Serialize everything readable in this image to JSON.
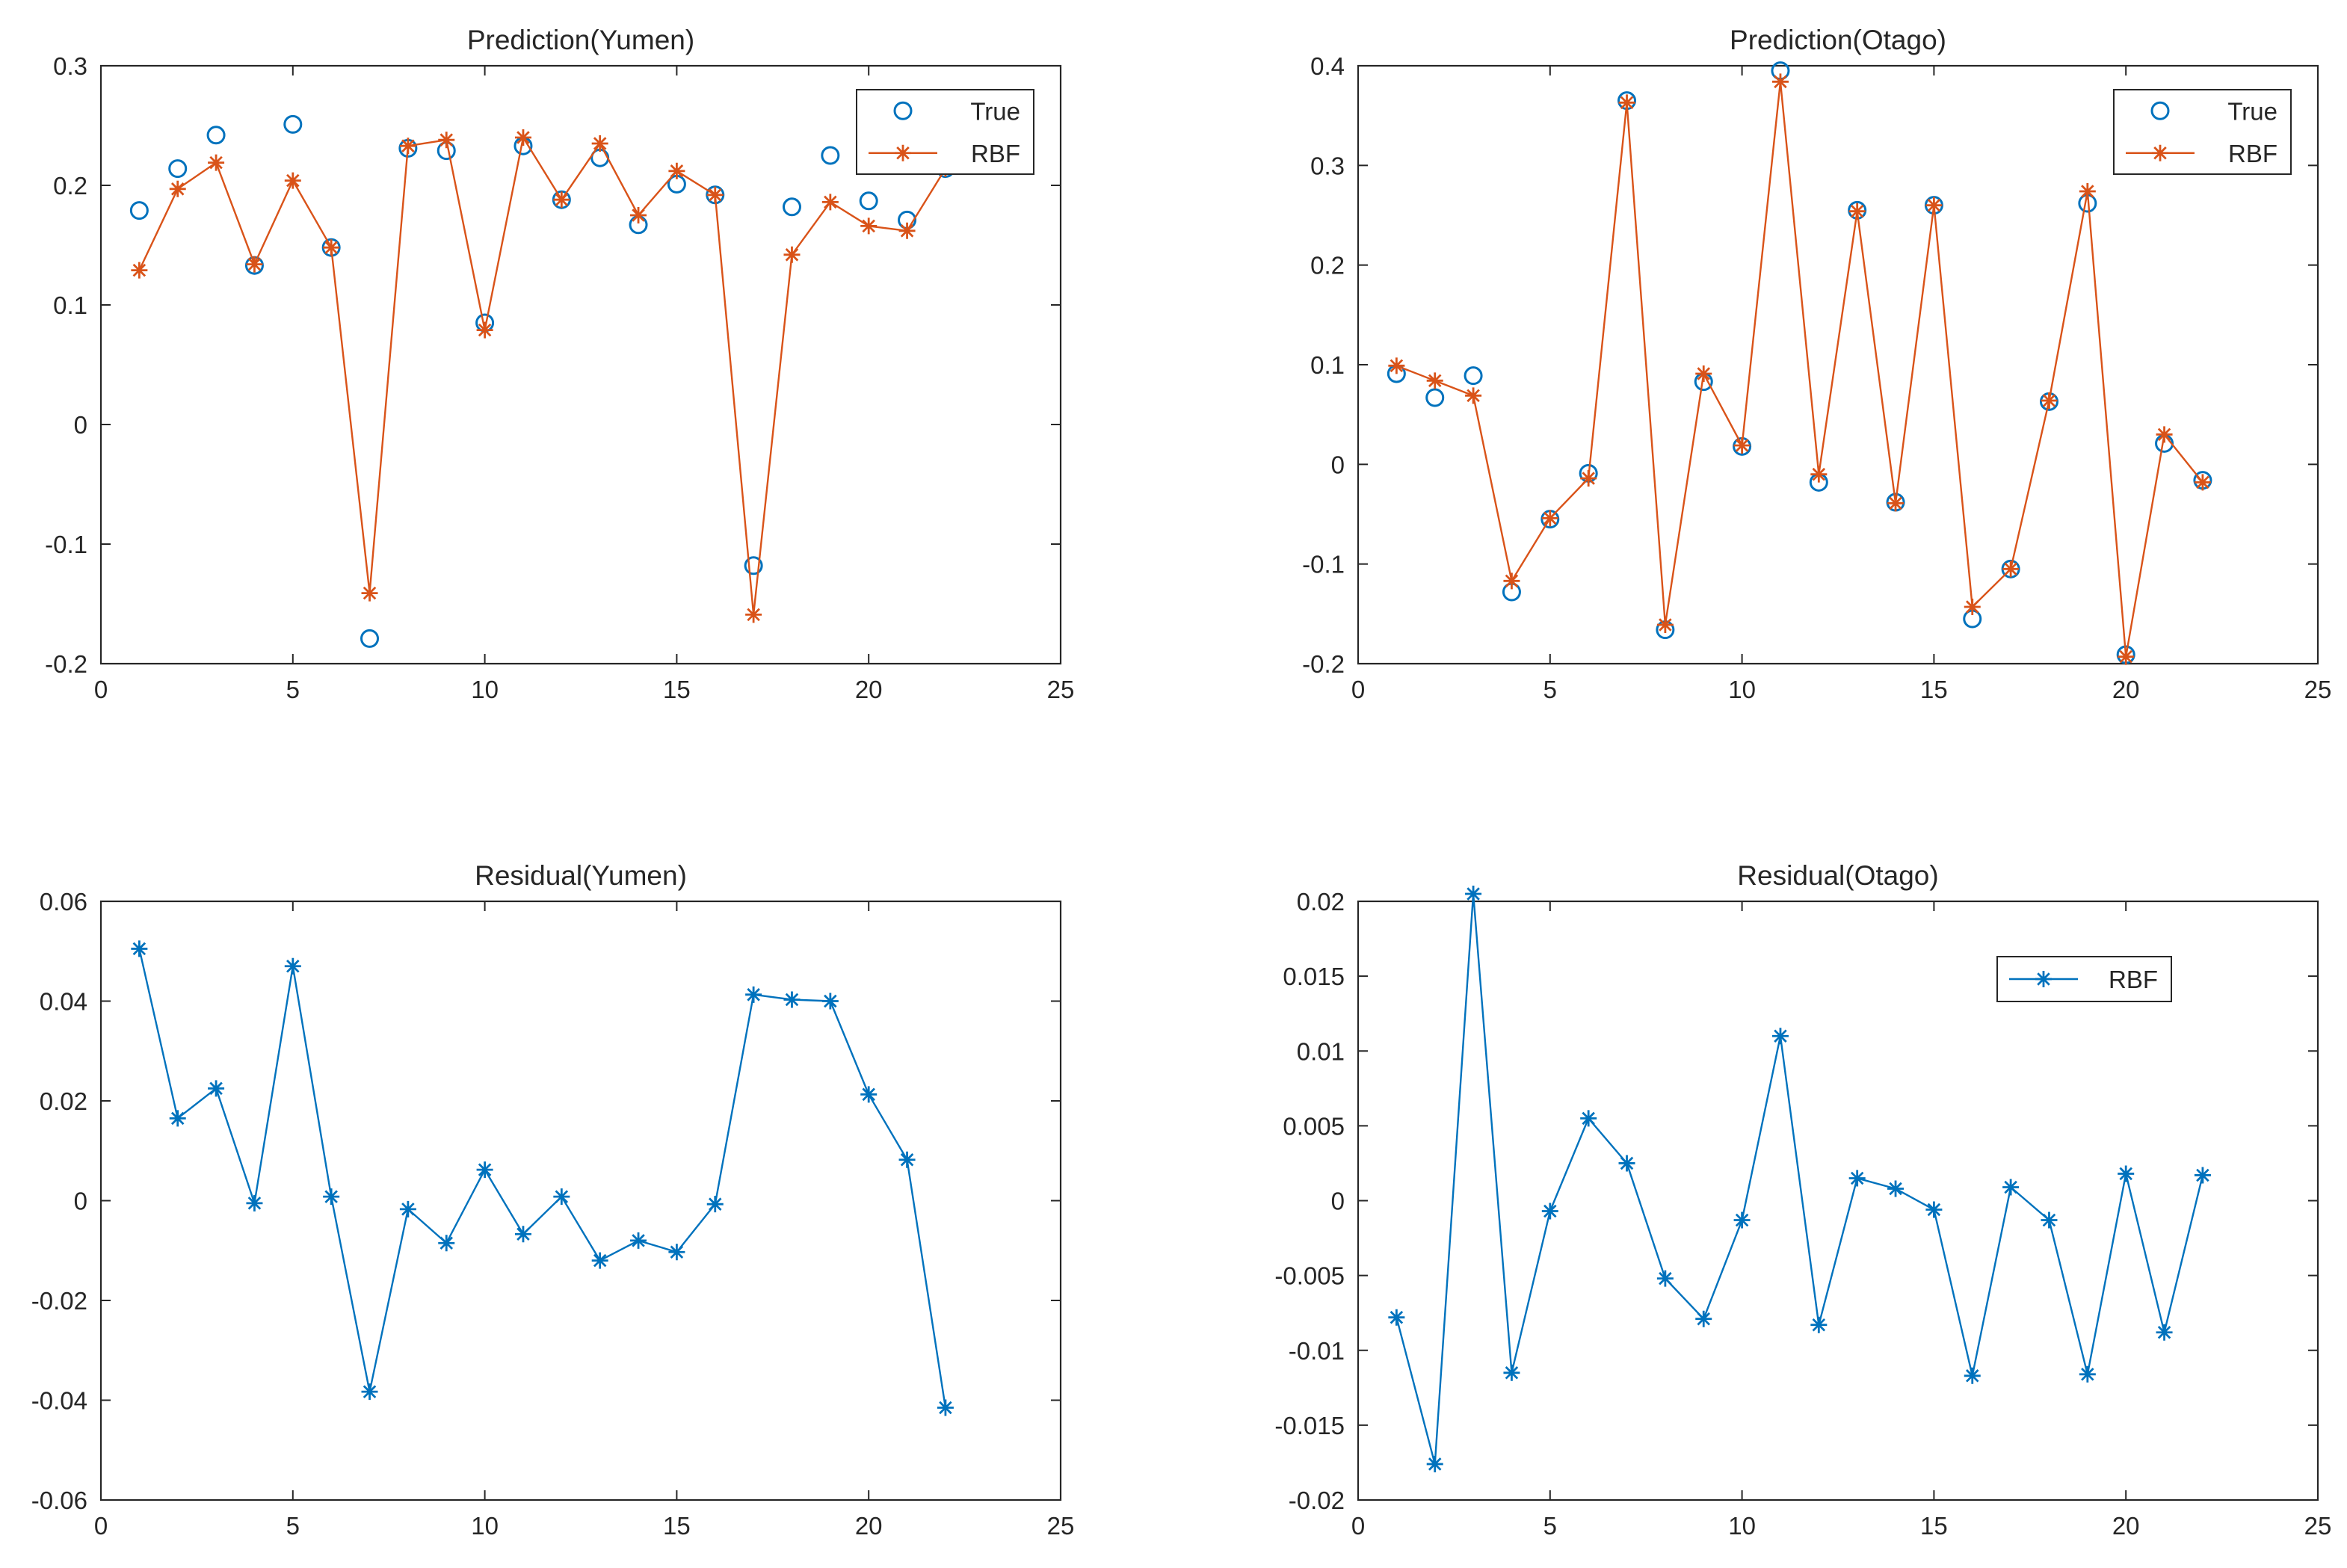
{
  "figure": {
    "name": "rbf-prediction-residual-figure"
  },
  "colors": {
    "true_series": "#0072BD",
    "rbf_series": "#D95319",
    "residual_series": "#0072BD",
    "axis": "#262626"
  },
  "chart_data": [
    {
      "id": "prediction-yumen",
      "type": "line",
      "title": "Prediction(Yumen)",
      "xlabel": "",
      "ylabel": "",
      "xlim": [
        0,
        25
      ],
      "ylim": [
        -0.2,
        0.3
      ],
      "xticks": [
        0,
        5,
        10,
        15,
        20,
        25
      ],
      "xtick_labels": [
        "0",
        "5",
        "10",
        "15",
        "20",
        "25"
      ],
      "yticks": [
        -0.2,
        -0.1,
        0,
        0.1,
        0.2,
        0.3
      ],
      "ytick_labels": [
        "-0.2",
        "-0.1",
        "0",
        "0.1",
        "0.2",
        "0.3"
      ],
      "legend": {
        "position": "top-right",
        "entries": [
          "True",
          "RBF"
        ]
      },
      "x": [
        1,
        2,
        3,
        4,
        5,
        6,
        7,
        8,
        9,
        10,
        11,
        12,
        13,
        14,
        15,
        16,
        17,
        18,
        19,
        20,
        21,
        22
      ],
      "series": [
        {
          "name": "True",
          "marker": "circle",
          "line": false,
          "color_key": "true_series",
          "values": [
            0.179,
            0.214,
            0.242,
            0.133,
            0.251,
            0.148,
            -0.179,
            0.231,
            0.229,
            0.085,
            0.233,
            0.188,
            0.223,
            0.167,
            0.201,
            0.192,
            -0.118,
            0.182,
            0.225,
            0.187,
            0.171,
            0.214
          ]
        },
        {
          "name": "RBF",
          "marker": "asterisk",
          "line": true,
          "color_key": "rbf_series",
          "values": [
            0.129,
            0.197,
            0.219,
            0.134,
            0.204,
            0.148,
            -0.141,
            0.233,
            0.238,
            0.079,
            0.24,
            0.188,
            0.235,
            0.175,
            0.212,
            0.192,
            -0.159,
            0.142,
            0.186,
            0.166,
            0.162,
            0.214
          ]
        }
      ]
    },
    {
      "id": "prediction-otago",
      "type": "line",
      "title": "Prediction(Otago)",
      "xlabel": "",
      "ylabel": "",
      "xlim": [
        0,
        25
      ],
      "ylim": [
        -0.2,
        0.4
      ],
      "xticks": [
        0,
        5,
        10,
        15,
        20,
        25
      ],
      "xtick_labels": [
        "0",
        "5",
        "10",
        "15",
        "20",
        "25"
      ],
      "yticks": [
        -0.2,
        -0.1,
        0,
        0.1,
        0.2,
        0.3,
        0.4
      ],
      "ytick_labels": [
        "-0.2",
        "-0.1",
        "0",
        "0.1",
        "0.2",
        "0.3",
        "0.4"
      ],
      "legend": {
        "position": "top-right",
        "entries": [
          "True",
          "RBF"
        ]
      },
      "x": [
        1,
        2,
        3,
        4,
        5,
        6,
        7,
        8,
        9,
        10,
        11,
        12,
        13,
        14,
        15,
        16,
        17,
        18,
        19,
        20,
        21,
        22
      ],
      "series": [
        {
          "name": "True",
          "marker": "circle",
          "line": false,
          "color_key": "true_series",
          "values": [
            0.091,
            0.067,
            0.089,
            -0.128,
            -0.055,
            -0.009,
            0.365,
            -0.166,
            0.083,
            0.018,
            0.395,
            -0.018,
            0.255,
            -0.038,
            0.26,
            -0.155,
            -0.105,
            0.063,
            0.262,
            -0.191,
            0.021,
            -0.016
          ]
        },
        {
          "name": "RBF",
          "marker": "asterisk",
          "line": true,
          "color_key": "rbf_series",
          "values": [
            0.099,
            0.084,
            0.069,
            -0.117,
            -0.054,
            -0.014,
            0.363,
            -0.161,
            0.091,
            0.019,
            0.384,
            -0.01,
            0.254,
            -0.039,
            0.26,
            -0.143,
            -0.105,
            0.064,
            0.274,
            -0.193,
            0.03,
            -0.018
          ]
        }
      ]
    },
    {
      "id": "residual-yumen",
      "type": "line",
      "title": "Residual(Yumen)",
      "xlabel": "",
      "ylabel": "",
      "xlim": [
        0,
        25
      ],
      "ylim": [
        -0.06,
        0.06
      ],
      "xticks": [
        0,
        5,
        10,
        15,
        20,
        25
      ],
      "xtick_labels": [
        "0",
        "5",
        "10",
        "15",
        "20",
        "25"
      ],
      "yticks": [
        -0.06,
        -0.04,
        -0.02,
        0,
        0.02,
        0.04,
        0.06
      ],
      "ytick_labels": [
        "-0.06",
        "-0.04",
        "-0.02",
        "0",
        "0.02",
        "0.04",
        "0.06"
      ],
      "legend": null,
      "x": [
        1,
        2,
        3,
        4,
        5,
        6,
        7,
        8,
        9,
        10,
        11,
        12,
        13,
        14,
        15,
        16,
        17,
        18,
        19,
        20,
        21,
        22
      ],
      "series": [
        {
          "name": "RBF",
          "marker": "asterisk",
          "line": true,
          "color_key": "residual_series",
          "values": [
            0.0505,
            0.0165,
            0.0225,
            -0.0005,
            0.047,
            0.0008,
            -0.0383,
            -0.0017,
            -0.0085,
            0.0062,
            -0.0067,
            0.0008,
            -0.012,
            -0.008,
            -0.0103,
            -0.0007,
            0.0413,
            0.0403,
            0.04,
            0.0213,
            0.0082,
            -0.0415
          ]
        }
      ]
    },
    {
      "id": "residual-otago",
      "type": "line",
      "title": "Residual(Otago)",
      "xlabel": "",
      "ylabel": "",
      "xlim": [
        0,
        25
      ],
      "ylim": [
        -0.02,
        0.02
      ],
      "xticks": [
        0,
        5,
        10,
        15,
        20,
        25
      ],
      "xtick_labels": [
        "0",
        "5",
        "10",
        "15",
        "20",
        "25"
      ],
      "yticks": [
        -0.02,
        -0.015,
        -0.01,
        -0.005,
        0,
        0.005,
        0.01,
        0.015,
        0.02
      ],
      "ytick_labels": [
        "-0.02",
        "-0.015",
        "-0.01",
        "-0.005",
        "0",
        "0.005",
        "0.01",
        "0.015",
        "0.02"
      ],
      "legend": {
        "position": "upper-right-inner",
        "entries": [
          "RBF"
        ]
      },
      "x": [
        1,
        2,
        3,
        4,
        5,
        6,
        7,
        8,
        9,
        10,
        11,
        12,
        13,
        14,
        15,
        16,
        17,
        18,
        19,
        20,
        21,
        22
      ],
      "series": [
        {
          "name": "RBF",
          "marker": "asterisk",
          "line": true,
          "color_key": "residual_series",
          "values": [
            -0.0078,
            -0.0176,
            0.0205,
            -0.0115,
            -0.0007,
            0.0055,
            0.0025,
            -0.0052,
            -0.0079,
            -0.0013,
            0.011,
            -0.0083,
            0.0015,
            0.0008,
            -0.0006,
            -0.0117,
            0.0009,
            -0.0013,
            -0.0116,
            0.0018,
            -0.0088,
            0.0017
          ]
        }
      ]
    }
  ]
}
